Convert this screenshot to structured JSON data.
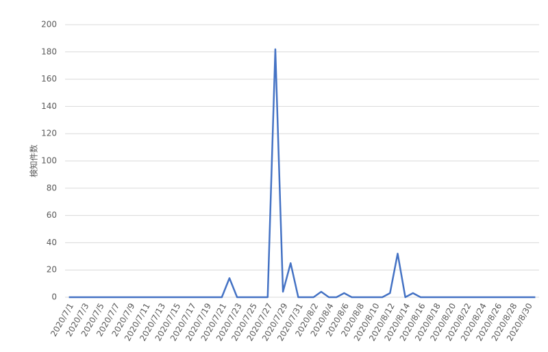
{
  "chart_data": {
    "type": "line",
    "y_label": "検知件数",
    "categories": [
      "2020/7/1",
      null,
      "2020/7/3",
      null,
      "2020/7/5",
      null,
      "2020/7/7",
      null,
      "2020/7/9",
      null,
      "2020/7/11",
      null,
      "2020/7/13",
      null,
      "2020/7/15",
      null,
      "2020/7/17",
      null,
      "2020/7/19",
      null,
      "2020/7/21",
      null,
      "2020/7/23",
      null,
      "2020/7/25",
      null,
      "2020/7/27",
      null,
      "2020/7/29",
      null,
      "2020/7/31",
      null,
      "2020/8/2",
      null,
      "2020/8/4",
      null,
      "2020/8/6",
      null,
      "2020/8/8",
      null,
      "2020/8/10",
      null,
      "2020/8/12",
      null,
      "2020/8/14",
      null,
      "2020/8/16",
      null,
      "2020/8/18",
      null,
      "2020/8/20",
      null,
      "2020/8/22",
      null,
      "2020/8/24",
      null,
      "2020/8/26",
      null,
      "2020/8/28",
      null,
      "2020/8/30",
      null
    ],
    "values": [
      0,
      0,
      0,
      0,
      0,
      0,
      0,
      0,
      0,
      0,
      0,
      0,
      0,
      0,
      0,
      0,
      0,
      0,
      0,
      0,
      0,
      14,
      0,
      0,
      0,
      0,
      0,
      182,
      4,
      25,
      0,
      0,
      0,
      4,
      0,
      0,
      3,
      0,
      0,
      0,
      0,
      0,
      3,
      32,
      0,
      3,
      0,
      0,
      0,
      0,
      0,
      0,
      0,
      0,
      0,
      0,
      0,
      0,
      0,
      0,
      0,
      0
    ],
    "color": "#4472c4",
    "ylim": [
      0,
      200
    ],
    "yticks": [
      0,
      20,
      40,
      60,
      80,
      100,
      120,
      140,
      160,
      180,
      200
    ],
    "grid": true
  }
}
